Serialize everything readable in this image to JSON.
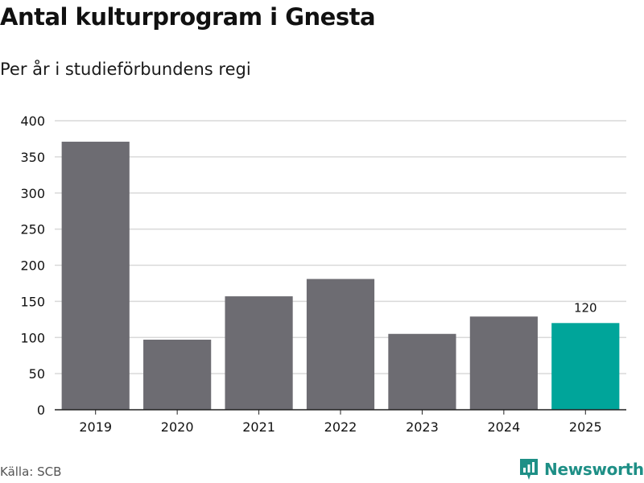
{
  "header": {
    "title": "Antal kulturprogram i Gnesta",
    "subtitle": "Per år i studieförbundens regi"
  },
  "footer": {
    "source": "Källa: SCB",
    "brand": "Newsworthy"
  },
  "colors": {
    "bar": "#6d6c72",
    "highlight": "#00a59a",
    "grid": "#d9d9d9",
    "axis": "#222222",
    "brand": "#1e8f86"
  },
  "chart_data": {
    "type": "bar",
    "categories": [
      "2019",
      "2020",
      "2021",
      "2022",
      "2023",
      "2024",
      "2025"
    ],
    "values": [
      371,
      97,
      157,
      181,
      105,
      129,
      120
    ],
    "highlight_index": 6,
    "data_labels": [
      {
        "index": 6,
        "text": "120"
      }
    ],
    "ylim": [
      0,
      400
    ],
    "yticks": [
      0,
      50,
      100,
      150,
      200,
      250,
      300,
      350,
      400
    ],
    "grid": true,
    "xlabel": "",
    "ylabel": ""
  }
}
